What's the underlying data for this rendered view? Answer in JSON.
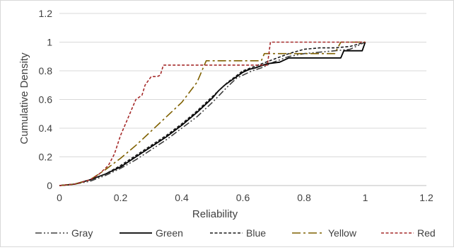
{
  "chart_data": {
    "type": "line",
    "title": "",
    "xlabel": "Reliability",
    "ylabel": "Cumulative Density",
    "xlim": [
      0,
      1.2
    ],
    "ylim": [
      0,
      1.2
    ],
    "x_ticks": [
      "0",
      "0.2",
      "0.4",
      "0.6",
      "0.8",
      "1",
      "1.2"
    ],
    "y_ticks": [
      "0",
      "0.2",
      "0.4",
      "0.6",
      "0.8",
      "1",
      "1.2"
    ],
    "grid": "horizontal",
    "legend_position": "bottom",
    "series": [
      {
        "name": "Gray",
        "color": "#404040",
        "dash": "dash-dot-dot",
        "points": [
          [
            0,
            0
          ],
          [
            0.05,
            0.01
          ],
          [
            0.1,
            0.03
          ],
          [
            0.15,
            0.07
          ],
          [
            0.2,
            0.12
          ],
          [
            0.25,
            0.18
          ],
          [
            0.3,
            0.25
          ],
          [
            0.35,
            0.32
          ],
          [
            0.4,
            0.4
          ],
          [
            0.45,
            0.48
          ],
          [
            0.5,
            0.58
          ],
          [
            0.55,
            0.69
          ],
          [
            0.58,
            0.75
          ],
          [
            0.6,
            0.77
          ],
          [
            0.63,
            0.8
          ],
          [
            0.66,
            0.82
          ],
          [
            0.7,
            0.86
          ],
          [
            0.75,
            0.9
          ],
          [
            0.8,
            0.92
          ],
          [
            0.85,
            0.93
          ],
          [
            0.9,
            0.94
          ],
          [
            0.95,
            0.95
          ],
          [
            1,
            1.0
          ]
        ]
      },
      {
        "name": "Green",
        "color": "#000000",
        "dash": "solid",
        "points": [
          [
            0,
            0
          ],
          [
            0.05,
            0.01
          ],
          [
            0.1,
            0.04
          ],
          [
            0.15,
            0.08
          ],
          [
            0.2,
            0.13
          ],
          [
            0.25,
            0.2
          ],
          [
            0.3,
            0.27
          ],
          [
            0.35,
            0.34
          ],
          [
            0.4,
            0.42
          ],
          [
            0.45,
            0.51
          ],
          [
            0.5,
            0.61
          ],
          [
            0.52,
            0.66
          ],
          [
            0.54,
            0.7
          ],
          [
            0.56,
            0.73
          ],
          [
            0.58,
            0.76
          ],
          [
            0.6,
            0.79
          ],
          [
            0.62,
            0.81
          ],
          [
            0.64,
            0.82
          ],
          [
            0.68,
            0.85
          ],
          [
            0.72,
            0.86
          ],
          [
            0.75,
            0.89
          ],
          [
            0.8,
            0.89
          ],
          [
            0.9,
            0.89
          ],
          [
            0.92,
            0.89
          ],
          [
            0.93,
            0.94
          ],
          [
            0.99,
            0.94
          ],
          [
            1,
            1.0
          ]
        ]
      },
      {
        "name": "Blue",
        "color": "#1a1a1a",
        "dash": "dash",
        "points": [
          [
            0,
            0
          ],
          [
            0.05,
            0.01
          ],
          [
            0.1,
            0.04
          ],
          [
            0.15,
            0.08
          ],
          [
            0.2,
            0.14
          ],
          [
            0.25,
            0.21
          ],
          [
            0.3,
            0.28
          ],
          [
            0.35,
            0.35
          ],
          [
            0.4,
            0.43
          ],
          [
            0.45,
            0.52
          ],
          [
            0.5,
            0.62
          ],
          [
            0.55,
            0.72
          ],
          [
            0.6,
            0.8
          ],
          [
            0.65,
            0.84
          ],
          [
            0.7,
            0.88
          ],
          [
            0.75,
            0.92
          ],
          [
            0.8,
            0.95
          ],
          [
            0.85,
            0.96
          ],
          [
            0.9,
            0.96
          ],
          [
            0.95,
            0.97
          ],
          [
            1,
            1.0
          ]
        ]
      },
      {
        "name": "Yellow",
        "color": "#7f6000",
        "dash": "long-dash-dot",
        "points": [
          [
            0,
            0
          ],
          [
            0.05,
            0.01
          ],
          [
            0.1,
            0.04
          ],
          [
            0.15,
            0.11
          ],
          [
            0.2,
            0.19
          ],
          [
            0.25,
            0.28
          ],
          [
            0.3,
            0.38
          ],
          [
            0.35,
            0.48
          ],
          [
            0.4,
            0.58
          ],
          [
            0.45,
            0.72
          ],
          [
            0.48,
            0.87
          ],
          [
            0.55,
            0.87
          ],
          [
            0.6,
            0.87
          ],
          [
            0.66,
            0.87
          ],
          [
            0.67,
            0.92
          ],
          [
            0.7,
            0.92
          ],
          [
            0.8,
            0.92
          ],
          [
            0.9,
            0.92
          ],
          [
            0.92,
            1.0
          ],
          [
            1,
            1.0
          ]
        ]
      },
      {
        "name": "Red",
        "color": "#a52a2a",
        "dash": "dash",
        "points": [
          [
            0,
            0
          ],
          [
            0.05,
            0.01
          ],
          [
            0.1,
            0.04
          ],
          [
            0.13,
            0.08
          ],
          [
            0.16,
            0.14
          ],
          [
            0.18,
            0.22
          ],
          [
            0.2,
            0.35
          ],
          [
            0.22,
            0.45
          ],
          [
            0.25,
            0.6
          ],
          [
            0.27,
            0.63
          ],
          [
            0.28,
            0.7
          ],
          [
            0.3,
            0.76
          ],
          [
            0.32,
            0.76
          ],
          [
            0.33,
            0.77
          ],
          [
            0.34,
            0.84
          ],
          [
            0.4,
            0.84
          ],
          [
            0.5,
            0.84
          ],
          [
            0.6,
            0.84
          ],
          [
            0.68,
            0.84
          ],
          [
            0.69,
            1.0
          ],
          [
            0.8,
            1.0
          ],
          [
            0.9,
            1.0
          ],
          [
            1,
            1.0
          ]
        ]
      }
    ]
  }
}
